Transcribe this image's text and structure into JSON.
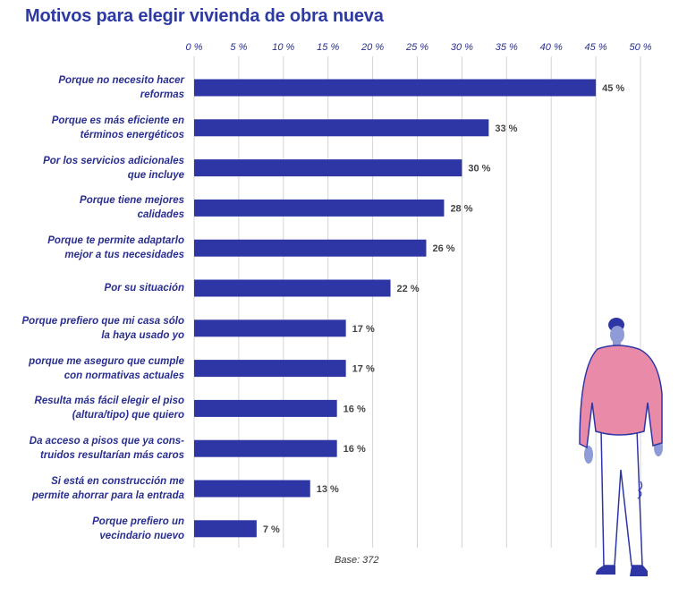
{
  "title": "Motivos para elegir vivienda de obra nueva",
  "base_note": "Base: 372",
  "colors": {
    "bar": "#2e36a5",
    "title": "#2e3aa3",
    "grid": "#d4d4d4",
    "figure_sweater": "#e88aa8"
  },
  "chart_data": {
    "type": "bar",
    "orientation": "horizontal",
    "title": "Motivos para elegir vivienda de obra nueva",
    "categories": [
      [
        "Porque no necesito hacer",
        "reformas"
      ],
      [
        "Porque es más eficiente en",
        "términos energéticos"
      ],
      [
        "Por los servicios adicionales",
        "que incluye"
      ],
      [
        "Porque tiene mejores",
        "calidades"
      ],
      [
        "Porque te permite adaptarlo",
        "mejor a tus necesidades"
      ],
      [
        "Por su situación"
      ],
      [
        "Porque prefiero que mi casa sólo",
        "la haya usado yo"
      ],
      [
        "porque me aseguro que cumple",
        "con normativas actuales"
      ],
      [
        "Resulta más fácil elegir el piso",
        "(altura/tipo) que quiero"
      ],
      [
        "Da acceso a pisos que ya cons-",
        "truidos resultarían más caros"
      ],
      [
        "Si está en construcción me",
        "permite ahorrar para la entrada"
      ],
      [
        "Porque prefiero un",
        "vecindario nuevo"
      ]
    ],
    "values": [
      45,
      33,
      30,
      28,
      26,
      22,
      17,
      17,
      16,
      16,
      13,
      7
    ],
    "value_labels": [
      "45 %",
      "33 %",
      "30 %",
      "28 %",
      "26 %",
      "22 %",
      "17 %",
      "17 %",
      "16 %",
      "16 %",
      "13 %",
      "7 %"
    ],
    "ticks": [
      0,
      5,
      10,
      15,
      20,
      25,
      30,
      35,
      40,
      45,
      50
    ],
    "tick_labels": [
      "0 %",
      "5 %",
      "10 %",
      "15 %",
      "20 %",
      "25 %",
      "30 %",
      "35 %",
      "40 %",
      "45 %",
      "50 %"
    ],
    "xlim": [
      0,
      50
    ],
    "axis_position": "top",
    "grid": true
  }
}
